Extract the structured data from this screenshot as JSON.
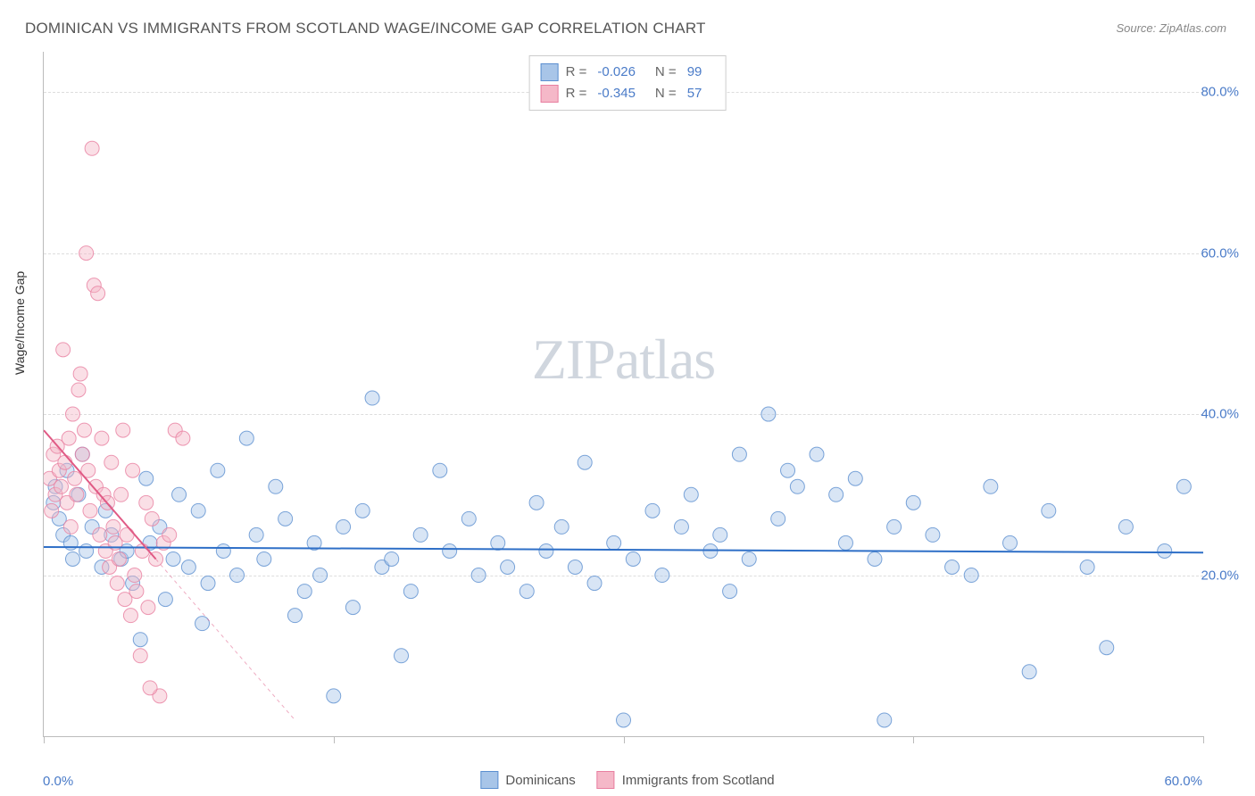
{
  "title": "DOMINICAN VS IMMIGRANTS FROM SCOTLAND WAGE/INCOME GAP CORRELATION CHART",
  "source_label": "Source: ZipAtlas.com",
  "ylabel": "Wage/Income Gap",
  "watermark_zip": "ZIP",
  "watermark_atlas": "atlas",
  "chart": {
    "type": "scatter",
    "background_color": "#ffffff",
    "grid_color": "#dddddd",
    "axis_color": "#bbbbbb",
    "xlim": [
      0,
      60
    ],
    "ylim": [
      0,
      85
    ],
    "x_ticks": [
      0,
      15,
      30,
      45,
      60
    ],
    "x_tick_labels": [
      "0.0%",
      "",
      "",
      "",
      "60.0%"
    ],
    "y_ticks": [
      20,
      40,
      60,
      80
    ],
    "y_tick_labels": [
      "20.0%",
      "40.0%",
      "60.0%",
      "80.0%"
    ],
    "marker_radius": 8,
    "marker_opacity": 0.45,
    "line_width": 2,
    "series": [
      {
        "name": "Dominicans",
        "fill_color": "#a8c5e8",
        "stroke_color": "#5b8fd0",
        "line_color": "#2e6fc7",
        "correlation_R": "-0.026",
        "N": "99",
        "regression": {
          "x1": 0,
          "y1": 23.5,
          "x2": 60,
          "y2": 22.8,
          "dashed_extension": false
        },
        "points": [
          [
            0.5,
            29
          ],
          [
            0.6,
            31
          ],
          [
            0.8,
            27
          ],
          [
            1.0,
            25
          ],
          [
            1.2,
            33
          ],
          [
            1.4,
            24
          ],
          [
            1.5,
            22
          ],
          [
            1.8,
            30
          ],
          [
            2.0,
            35
          ],
          [
            2.2,
            23
          ],
          [
            2.5,
            26
          ],
          [
            3.0,
            21
          ],
          [
            3.2,
            28
          ],
          [
            3.5,
            25
          ],
          [
            4.0,
            22
          ],
          [
            4.3,
            23
          ],
          [
            4.6,
            19
          ],
          [
            5.0,
            12
          ],
          [
            5.3,
            32
          ],
          [
            5.5,
            24
          ],
          [
            6.0,
            26
          ],
          [
            6.3,
            17
          ],
          [
            6.7,
            22
          ],
          [
            7.0,
            30
          ],
          [
            7.5,
            21
          ],
          [
            8.0,
            28
          ],
          [
            8.2,
            14
          ],
          [
            8.5,
            19
          ],
          [
            9.0,
            33
          ],
          [
            9.3,
            23
          ],
          [
            10.0,
            20
          ],
          [
            10.5,
            37
          ],
          [
            11.0,
            25
          ],
          [
            11.4,
            22
          ],
          [
            12.0,
            31
          ],
          [
            12.5,
            27
          ],
          [
            13.0,
            15
          ],
          [
            13.5,
            18
          ],
          [
            14.0,
            24
          ],
          [
            14.3,
            20
          ],
          [
            15.0,
            5
          ],
          [
            15.5,
            26
          ],
          [
            16.0,
            16
          ],
          [
            16.5,
            28
          ],
          [
            17.0,
            42
          ],
          [
            17.5,
            21
          ],
          [
            18.0,
            22
          ],
          [
            18.5,
            10
          ],
          [
            19.0,
            18
          ],
          [
            19.5,
            25
          ],
          [
            20.5,
            33
          ],
          [
            21.0,
            23
          ],
          [
            22.0,
            27
          ],
          [
            22.5,
            20
          ],
          [
            23.5,
            24
          ],
          [
            24.0,
            21
          ],
          [
            25.0,
            18
          ],
          [
            25.5,
            29
          ],
          [
            26.0,
            23
          ],
          [
            26.8,
            26
          ],
          [
            27.5,
            21
          ],
          [
            28.0,
            34
          ],
          [
            28.5,
            19
          ],
          [
            29.5,
            24
          ],
          [
            30.0,
            2
          ],
          [
            30.5,
            22
          ],
          [
            31.5,
            28
          ],
          [
            32.0,
            20
          ],
          [
            33.0,
            26
          ],
          [
            33.5,
            30
          ],
          [
            34.5,
            23
          ],
          [
            35.0,
            25
          ],
          [
            35.5,
            18
          ],
          [
            36.0,
            35
          ],
          [
            36.5,
            22
          ],
          [
            37.5,
            40
          ],
          [
            38.0,
            27
          ],
          [
            38.5,
            33
          ],
          [
            39.0,
            31
          ],
          [
            40.0,
            35
          ],
          [
            41.0,
            30
          ],
          [
            41.5,
            24
          ],
          [
            42.0,
            32
          ],
          [
            43.0,
            22
          ],
          [
            43.5,
            2
          ],
          [
            44.0,
            26
          ],
          [
            45.0,
            29
          ],
          [
            46.0,
            25
          ],
          [
            47.0,
            21
          ],
          [
            48.0,
            20
          ],
          [
            49.0,
            31
          ],
          [
            50.0,
            24
          ],
          [
            51.0,
            8
          ],
          [
            52.0,
            28
          ],
          [
            54.0,
            21
          ],
          [
            55.0,
            11
          ],
          [
            56.0,
            26
          ],
          [
            58.0,
            23
          ],
          [
            59.0,
            31
          ]
        ]
      },
      {
        "name": "Immigrants from Scotland",
        "fill_color": "#f5b8c8",
        "stroke_color": "#e87fa0",
        "line_color": "#e05a85",
        "correlation_R": "-0.345",
        "N": "57",
        "regression": {
          "x1": 0,
          "y1": 38,
          "x2": 5.8,
          "y2": 22,
          "dashed_extension": true,
          "dash_x2": 13,
          "dash_y2": 2
        },
        "points": [
          [
            0.3,
            32
          ],
          [
            0.4,
            28
          ],
          [
            0.5,
            35
          ],
          [
            0.6,
            30
          ],
          [
            0.7,
            36
          ],
          [
            0.8,
            33
          ],
          [
            0.9,
            31
          ],
          [
            1.0,
            48
          ],
          [
            1.1,
            34
          ],
          [
            1.2,
            29
          ],
          [
            1.3,
            37
          ],
          [
            1.4,
            26
          ],
          [
            1.5,
            40
          ],
          [
            1.6,
            32
          ],
          [
            1.7,
            30
          ],
          [
            1.8,
            43
          ],
          [
            1.9,
            45
          ],
          [
            2.0,
            35
          ],
          [
            2.1,
            38
          ],
          [
            2.2,
            60
          ],
          [
            2.3,
            33
          ],
          [
            2.4,
            28
          ],
          [
            2.5,
            73
          ],
          [
            2.6,
            56
          ],
          [
            2.7,
            31
          ],
          [
            2.8,
            55
          ],
          [
            2.9,
            25
          ],
          [
            3.0,
            37
          ],
          [
            3.1,
            30
          ],
          [
            3.2,
            23
          ],
          [
            3.3,
            29
          ],
          [
            3.4,
            21
          ],
          [
            3.5,
            34
          ],
          [
            3.6,
            26
          ],
          [
            3.7,
            24
          ],
          [
            3.8,
            19
          ],
          [
            3.9,
            22
          ],
          [
            4.0,
            30
          ],
          [
            4.1,
            38
          ],
          [
            4.2,
            17
          ],
          [
            4.3,
            25
          ],
          [
            4.5,
            15
          ],
          [
            4.6,
            33
          ],
          [
            4.7,
            20
          ],
          [
            4.8,
            18
          ],
          [
            5.0,
            10
          ],
          [
            5.1,
            23
          ],
          [
            5.3,
            29
          ],
          [
            5.4,
            16
          ],
          [
            5.6,
            27
          ],
          [
            5.8,
            22
          ],
          [
            6.0,
            5
          ],
          [
            6.2,
            24
          ],
          [
            6.5,
            25
          ],
          [
            6.8,
            38
          ],
          [
            7.2,
            37
          ],
          [
            5.5,
            6
          ]
        ]
      }
    ]
  },
  "legend_top": {
    "R_label": "R =",
    "N_label": "N ="
  },
  "legend_bottom": {
    "series1_name": "Dominicans",
    "series2_name": "Immigrants from Scotland"
  }
}
